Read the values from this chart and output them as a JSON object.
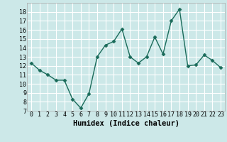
{
  "x": [
    0,
    1,
    2,
    3,
    4,
    5,
    6,
    7,
    8,
    9,
    10,
    11,
    12,
    13,
    14,
    15,
    16,
    17,
    18,
    19,
    20,
    21,
    22,
    23
  ],
  "y": [
    12.3,
    11.5,
    11.0,
    10.4,
    10.4,
    8.3,
    7.3,
    8.9,
    13.0,
    14.3,
    14.7,
    16.1,
    13.0,
    12.3,
    13.0,
    15.2,
    13.3,
    17.0,
    18.3,
    12.0,
    12.1,
    13.2,
    12.6,
    11.8
  ],
  "line_color": "#1a6b5a",
  "bg_color": "#cce8e8",
  "grid_color": "#ffffff",
  "xlabel": "Humidex (Indice chaleur)",
  "ylim": [
    7,
    19
  ],
  "xlim": [
    -0.5,
    23.5
  ],
  "yticks": [
    7,
    8,
    9,
    10,
    11,
    12,
    13,
    14,
    15,
    16,
    17,
    18
  ],
  "xticks": [
    0,
    1,
    2,
    3,
    4,
    5,
    6,
    7,
    8,
    9,
    10,
    11,
    12,
    13,
    14,
    15,
    16,
    17,
    18,
    19,
    20,
    21,
    22,
    23
  ],
  "marker_size": 2.5,
  "line_width": 1.0,
  "xlabel_fontsize": 7.5,
  "tick_fontsize": 6.0
}
